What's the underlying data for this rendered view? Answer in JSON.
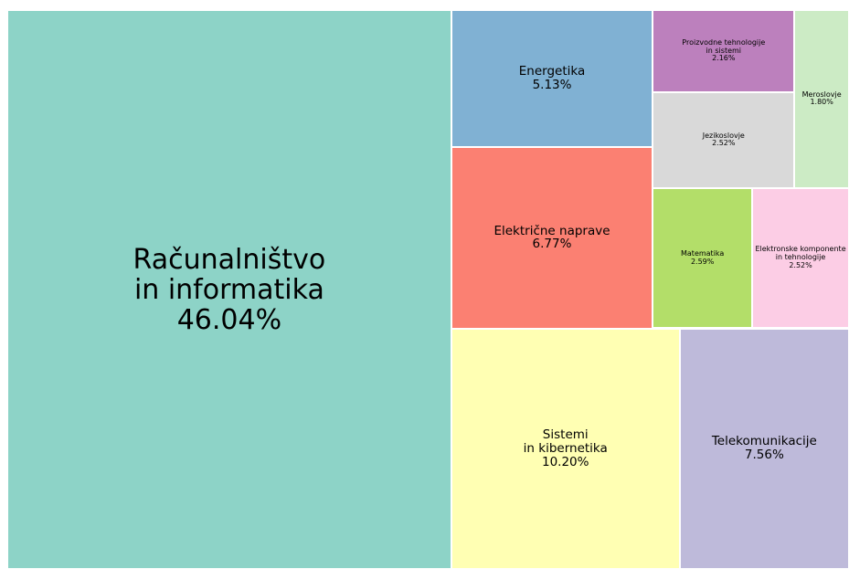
{
  "chart_data": {
    "type": "treemap",
    "categories": [
      "Računalništvo\nin informatika",
      "Sistemi\nin kibernetika",
      "Telekomunikacije",
      "Električne naprave",
      "Energetika",
      "Matematika",
      "Elektronske komponente\nin tehnologije",
      "Jezikoslovje",
      "Proizvodne tehnologije\nin sistemi",
      "Meroslovje"
    ],
    "values": [
      46.04,
      10.2,
      7.56,
      6.77,
      5.13,
      2.59,
      2.52,
      2.52,
      2.16,
      1.8
    ],
    "value_labels": [
      "46.04%",
      "10.20%",
      "7.56%",
      "6.77%",
      "5.13%",
      "2.59%",
      "2.52%",
      "2.52%",
      "2.16%",
      "1.80%"
    ],
    "colors": [
      "#8dd3c7",
      "#ffffb3",
      "#bebada",
      "#fb8072",
      "#80b1d3",
      "#b3de69",
      "#fccde5",
      "#d9d9d9",
      "#bc80bd",
      "#ccebc5"
    ]
  }
}
